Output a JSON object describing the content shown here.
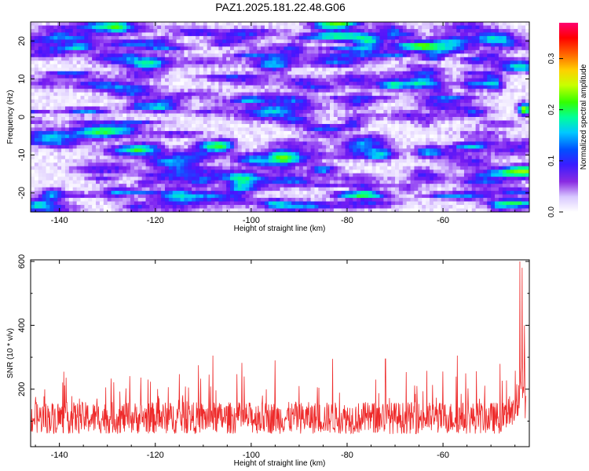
{
  "title": "PAZ1.2025.181.22.48.G06",
  "colors": {
    "snr_line": "#ee2b2b",
    "frame": "#000000"
  },
  "chart_data": [
    {
      "type": "heatmap",
      "title": "PAZ1.2025.181.22.48.G06",
      "xlabel": "Height of straight line (km)",
      "ylabel": "Frequency (Hz)",
      "xlim": [
        -146,
        -42
      ],
      "ylim": [
        -25,
        25
      ],
      "x_ticks": [
        -140,
        -120,
        -100,
        -80,
        -60
      ],
      "y_ticks": [
        -20,
        -10,
        0,
        10,
        20
      ],
      "colorbar": {
        "label": "Normalized spectral amplitude",
        "range": [
          0,
          0.37
        ],
        "ticks": [
          0.0,
          0.1,
          0.2,
          0.3
        ],
        "colormap": "rainbow (white-lavender → violet → blue → cyan → green → yellow → orange → red → magenta)"
      },
      "description_values": {
        "typical_amplitude": [
          0.0,
          0.06
        ],
        "peak_amplitude_location": {
          "x": -43,
          "y": 2,
          "value": 0.25
        }
      }
    },
    {
      "type": "line",
      "xlabel": "Height of straight line (km)",
      "ylabel": "SNR (10 * v/v)",
      "xlim": [
        -146,
        -42
      ],
      "ylim": [
        20,
        605
      ],
      "x_ticks": [
        -140,
        -120,
        -100,
        -80,
        -60
      ],
      "y_ticks": [
        200,
        400,
        600
      ],
      "series": [
        {
          "noise_baseline": [
            60,
            160
          ],
          "spikes": [
            {
              "x": -108,
              "y": 305
            },
            {
              "x": -95,
              "y": 290
            },
            {
              "x": -83,
              "y": 295
            },
            {
              "x": -72,
              "y": 295
            },
            {
              "x": -57,
              "y": 305
            },
            {
              "x": -44,
              "y": 600
            },
            {
              "x": -43.5,
              "y": 580
            },
            {
              "x": -43,
              "y": 400
            }
          ]
        }
      ]
    }
  ]
}
